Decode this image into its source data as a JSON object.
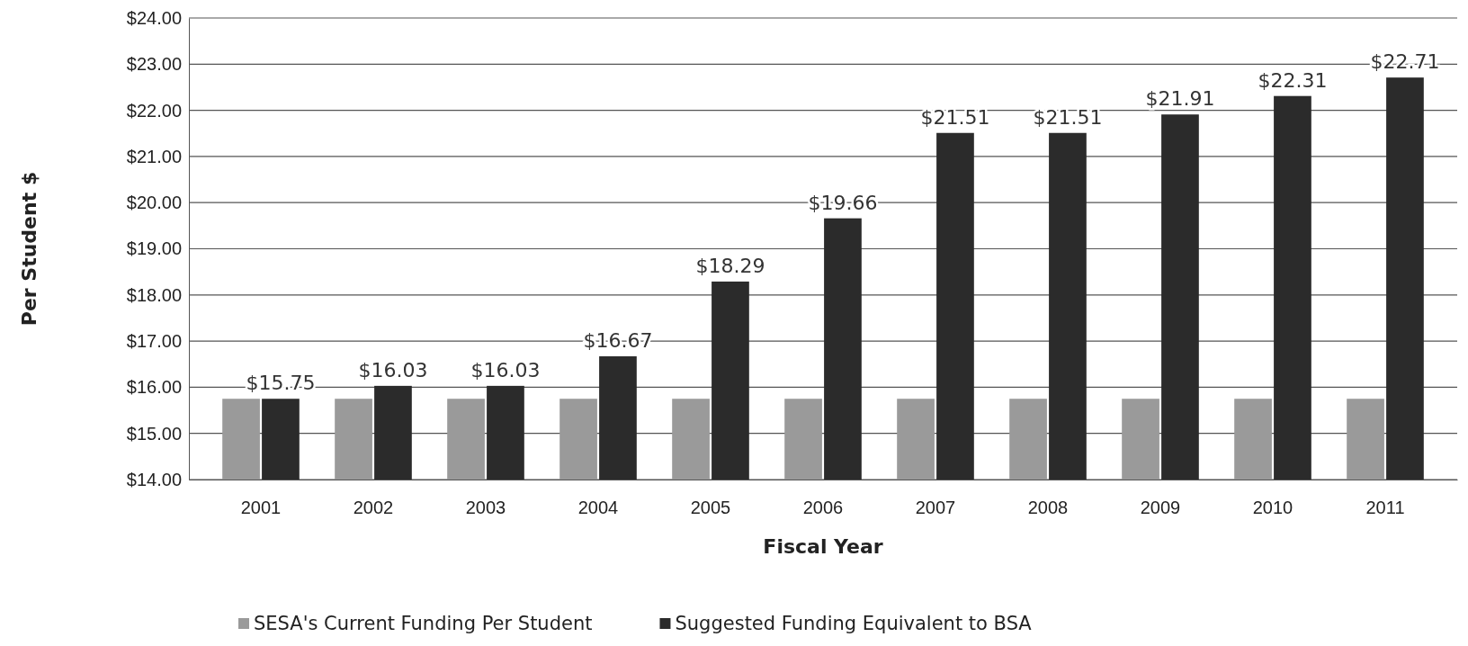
{
  "chart_data": {
    "type": "bar",
    "xlabel": "Fiscal Year",
    "ylabel": "Per Student $",
    "categories": [
      "2001",
      "2002",
      "2003",
      "2004",
      "2005",
      "2006",
      "2007",
      "2008",
      "2009",
      "2010",
      "2011"
    ],
    "series": [
      {
        "name": "SESA's Current Funding Per Student",
        "color": "#9a9a9a",
        "values": [
          15.75,
          15.75,
          15.75,
          15.75,
          15.75,
          15.75,
          15.75,
          15.75,
          15.75,
          15.75,
          15.75
        ]
      },
      {
        "name": "Suggested Funding Equivalent to BSA",
        "color": "#2b2b2b",
        "values": [
          15.75,
          16.03,
          16.03,
          16.67,
          18.29,
          19.66,
          21.51,
          21.51,
          21.91,
          22.31,
          22.71
        ],
        "value_labels": [
          "$15.75",
          "$16.03",
          "$16.03",
          "$16.67",
          "$18.29",
          "$19.66",
          "$21.51",
          "$21.51",
          "$21.91",
          "$22.31",
          "$22.71"
        ]
      }
    ],
    "ylim": [
      14,
      24
    ],
    "yticks": [
      {
        "value": 14,
        "label": "$14.00"
      },
      {
        "value": 15,
        "label": "$15.00"
      },
      {
        "value": 16,
        "label": "$16.00"
      },
      {
        "value": 17,
        "label": "$17.00"
      },
      {
        "value": 18,
        "label": "$18.00"
      },
      {
        "value": 19,
        "label": "$19.00"
      },
      {
        "value": 20,
        "label": "$20.00"
      },
      {
        "value": 21,
        "label": "$21.00"
      },
      {
        "value": 22,
        "label": "$22.00"
      },
      {
        "value": 23,
        "label": "$23.00"
      },
      {
        "value": 24,
        "label": "$24.00"
      }
    ],
    "grid": "y",
    "legend": "bottom"
  }
}
